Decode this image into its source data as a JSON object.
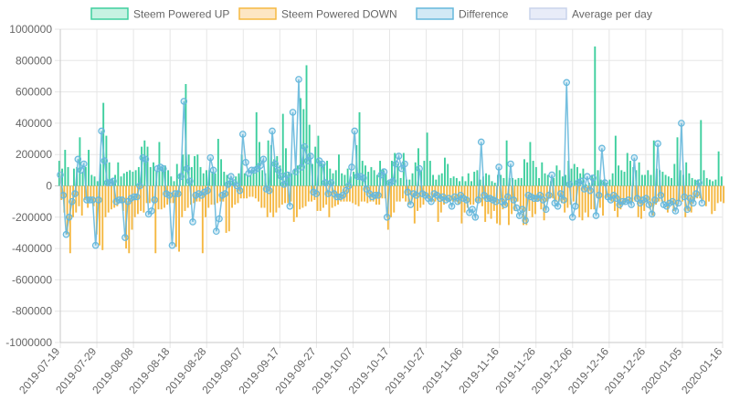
{
  "chart_data": {
    "type": "bar",
    "title": "",
    "xlabel": "",
    "ylabel": "",
    "ylim": [
      -1000000,
      1000000
    ],
    "yticks": [
      1000000,
      800000,
      600000,
      400000,
      200000,
      0,
      -200000,
      -400000,
      -600000,
      -800000,
      -1000000
    ],
    "ytick_labels": [
      "1000000",
      "800000",
      "600000",
      "400000",
      "200000",
      "0",
      "-200000",
      "-400000",
      "-600000",
      "-800000",
      "-1000000"
    ],
    "x_start": "2019-07-19",
    "x_end": "2020-01-16",
    "xtick_labels": [
      "2019-07-19",
      "2019-07-29",
      "2019-08-08",
      "2019-08-18",
      "2019-08-28",
      "2019-09-07",
      "2019-09-17",
      "2019-09-27",
      "2019-10-07",
      "2019-10-17",
      "2019-10-27",
      "2019-11-06",
      "2019-11-16",
      "2019-11-26",
      "2019-12-06",
      "2019-12-16",
      "2019-12-26",
      "2020-01-05",
      "2020-01-16"
    ],
    "grid": true,
    "legend_position": "top",
    "legend": [
      {
        "name": "Steem Powered UP",
        "fill": "#c6f2e2",
        "stroke": "#3ecf9e"
      },
      {
        "name": "Steem Powered DOWN",
        "fill": "#fde6c4",
        "stroke": "#f5b841"
      },
      {
        "name": "Difference",
        "fill": "#d2e9f5",
        "stroke": "#66b8dc"
      },
      {
        "name": "Average per day",
        "fill": "#e8ecf8",
        "stroke": "#c9d3ec"
      }
    ],
    "series": [
      {
        "name": "Steem Powered UP",
        "color": "#3ecf9e",
        "values": [
          160000,
          110000,
          230000,
          120000,
          0,
          110000,
          120000,
          310000,
          90000,
          120000,
          230000,
          70000,
          60000,
          30000,
          140000,
          530000,
          320000,
          150000,
          50000,
          70000,
          150000,
          60000,
          80000,
          90000,
          100000,
          90000,
          100000,
          120000,
          250000,
          290000,
          250000,
          120000,
          150000,
          90000,
          280000,
          120000,
          130000,
          100000,
          60000,
          30000,
          140000,
          80000,
          200000,
          650000,
          200000,
          120000,
          190000,
          200000,
          120000,
          80000,
          100000,
          100000,
          90000,
          80000,
          300000,
          170000,
          90000,
          70000,
          50000,
          40000,
          60000,
          80000,
          200000,
          80000,
          70000,
          70000,
          100000,
          470000,
          280000,
          100000,
          80000,
          290000,
          260000,
          170000,
          190000,
          130000,
          460000,
          240000,
          90000,
          80000,
          110000,
          130000,
          560000,
          490000,
          770000,
          390000,
          140000,
          250000,
          320000,
          150000,
          140000,
          160000,
          110000,
          80000,
          100000,
          200000,
          80000,
          70000,
          110000,
          60000,
          90000,
          260000,
          470000,
          160000,
          130000,
          90000,
          120000,
          100000,
          70000,
          160000,
          110000,
          80000,
          30000,
          160000,
          210000,
          140000,
          50000,
          210000,
          40000,
          40000,
          80000,
          150000,
          240000,
          100000,
          160000,
          340000,
          160000,
          70000,
          40000,
          70000,
          80000,
          180000,
          140000,
          50000,
          60000,
          50000,
          30000,
          60000,
          30000,
          80000,
          30000,
          90000,
          100000,
          40000,
          60000,
          80000,
          70000,
          30000,
          20000,
          70000,
          70000,
          50000,
          290000,
          50000,
          50000,
          40000,
          50000,
          50000,
          170000,
          150000,
          280000,
          160000,
          120000,
          50000,
          150000,
          80000,
          70000,
          30000,
          50000,
          130000,
          100000,
          60000,
          70000,
          160000,
          110000,
          140000,
          120000,
          80000,
          110000,
          10000,
          20000,
          70000,
          890000,
          100000,
          40000,
          30000,
          20000,
          40000,
          80000,
          320000,
          130000,
          100000,
          90000,
          210000,
          160000,
          120000,
          100000,
          150000,
          70000,
          70000,
          100000,
          70000,
          290000,
          110000,
          100000,
          90000,
          70000,
          60000,
          50000,
          140000,
          310000,
          100000,
          70000,
          150000,
          80000,
          50000,
          40000,
          40000,
          420000,
          100000,
          50000,
          40000,
          30000,
          40000,
          220000,
          60000
        ]
      },
      {
        "name": "Steem Powered DOWN",
        "color": "#f5b841",
        "values": [
          -90000,
          -170000,
          -310000,
          -430000,
          -200000,
          -170000,
          -130000,
          -190000,
          -90000,
          -140000,
          -90000,
          -130000,
          -310000,
          -380000,
          -410000,
          -200000,
          -170000,
          -150000,
          -140000,
          -130000,
          -100000,
          -160000,
          -400000,
          -430000,
          -280000,
          -200000,
          -180000,
          -160000,
          -170000,
          -110000,
          -110000,
          -100000,
          -430000,
          -150000,
          -150000,
          -140000,
          -120000,
          -110000,
          -110000,
          -390000,
          -420000,
          -200000,
          -160000,
          -140000,
          -120000,
          -110000,
          -100000,
          -100000,
          -430000,
          -200000,
          -140000,
          -120000,
          -120000,
          -110000,
          -100000,
          -100000,
          -300000,
          -290000,
          -140000,
          -120000,
          -110000,
          -80000,
          -80000,
          -80000,
          -70000,
          -70000,
          -80000,
          -100000,
          -140000,
          -140000,
          -200000,
          -170000,
          -200000,
          -170000,
          -140000,
          -120000,
          -110000,
          -110000,
          -100000,
          -230000,
          -200000,
          -150000,
          -140000,
          -130000,
          -100000,
          -100000,
          -90000,
          -160000,
          -160000,
          -140000,
          -120000,
          -200000,
          -140000,
          -130000,
          -120000,
          -100000,
          -100000,
          -100000,
          -100000,
          -110000,
          -120000,
          -130000,
          -100000,
          -100000,
          -110000,
          -100000,
          -100000,
          -120000,
          -120000,
          -80000,
          -80000,
          -280000,
          -200000,
          -170000,
          -100000,
          -100000,
          -80000,
          -100000,
          -120000,
          -100000,
          -240000,
          -160000,
          -140000,
          -120000,
          -80000,
          -80000,
          -100000,
          -100000,
          -230000,
          -170000,
          -120000,
          -100000,
          -100000,
          -100000,
          -100000,
          -120000,
          -240000,
          -170000,
          -140000,
          -120000,
          -120000,
          -100000,
          -100000,
          -130000,
          -230000,
          -180000,
          -210000,
          -160000,
          -240000,
          -250000,
          -150000,
          -130000,
          -250000,
          -180000,
          -160000,
          -100000,
          -150000,
          -250000,
          -250000,
          -160000,
          -200000,
          -180000,
          -100000,
          -150000,
          -220000,
          -100000,
          -80000,
          -80000,
          -100000,
          -100000,
          -110000,
          -170000,
          -140000,
          -120000,
          -100000,
          -120000,
          -200000,
          -220000,
          -170000,
          -200000,
          -150000,
          -150000,
          -80000,
          -140000,
          -190000,
          -80000,
          -80000,
          -100000,
          -160000,
          -200000,
          -150000,
          -120000,
          -100000,
          -100000,
          -100000,
          -100000,
          -200000,
          -210000,
          -160000,
          -110000,
          -150000,
          -190000,
          -120000,
          -100000,
          -100000,
          -100000,
          -170000,
          -120000,
          -160000,
          -130000,
          -100000,
          -100000,
          -200000,
          -160000,
          -170000,
          -100000,
          -80000,
          -80000,
          -90000,
          -130000,
          -100000,
          -180000,
          -160000,
          -110000,
          -100000,
          -110000
        ]
      },
      {
        "name": "Difference",
        "color": "#66b8dc",
        "values": [
          70000,
          -60000,
          -310000,
          -200000,
          -100000,
          -50000,
          170000,
          100000,
          140000,
          -90000,
          -90000,
          -90000,
          -380000,
          -90000,
          350000,
          160000,
          20000,
          20000,
          30000,
          -100000,
          -90000,
          -90000,
          -330000,
          -100000,
          -80000,
          -70000,
          -70000,
          0,
          180000,
          170000,
          -180000,
          -160000,
          -90000,
          110000,
          120000,
          110000,
          -50000,
          -60000,
          -380000,
          -50000,
          -50000,
          60000,
          540000,
          110000,
          30000,
          -230000,
          -60000,
          -50000,
          -60000,
          -40000,
          -30000,
          180000,
          100000,
          -290000,
          -210000,
          -60000,
          -50000,
          10000,
          60000,
          20000,
          0,
          -30000,
          330000,
          150000,
          80000,
          100000,
          100000,
          110000,
          130000,
          170000,
          -20000,
          -30000,
          350000,
          140000,
          100000,
          60000,
          10000,
          70000,
          -130000,
          470000,
          90000,
          680000,
          120000,
          250000,
          160000,
          190000,
          -40000,
          -50000,
          160000,
          140000,
          20000,
          -50000,
          20000,
          -50000,
          -70000,
          -70000,
          -60000,
          -30000,
          0,
          120000,
          350000,
          60000,
          60000,
          50000,
          -20000,
          -50000,
          -70000,
          -60000,
          -60000,
          70000,
          90000,
          -200000,
          20000,
          30000,
          140000,
          190000,
          110000,
          140000,
          -40000,
          -120000,
          -50000,
          -60000,
          110000,
          -50000,
          -60000,
          -80000,
          -100000,
          -50000,
          -60000,
          -80000,
          -70000,
          -90000,
          -80000,
          -130000,
          -70000,
          -100000,
          -60000,
          -80000,
          -90000,
          -170000,
          -150000,
          -200000,
          -90000,
          280000,
          -60000,
          -80000,
          -80000,
          -90000,
          -100000,
          120000,
          -100000,
          -120000,
          -70000,
          140000,
          -90000,
          -140000,
          -190000,
          -150000,
          -220000,
          -60000,
          -70000,
          -80000,
          -80000,
          -60000,
          -90000,
          -150000,
          -60000,
          70000,
          -110000,
          -130000,
          -50000,
          -90000,
          660000,
          10000,
          -200000,
          -130000,
          20000,
          30000,
          -20000,
          60000,
          -30000,
          50000,
          -190000,
          -60000,
          240000,
          20000,
          -70000,
          -90000,
          -60000,
          -80000,
          -120000,
          -100000,
          -100000,
          -90000,
          -120000,
          180000,
          -80000,
          -110000,
          -90000,
          -80000,
          -120000,
          -180000,
          -90000,
          270000,
          -60000,
          -120000,
          -130000,
          -110000,
          -100000,
          -160000,
          -110000,
          400000,
          -70000,
          -150000,
          -80000,
          -110000,
          -50000,
          20000,
          -110000
        ]
      }
    ]
  }
}
